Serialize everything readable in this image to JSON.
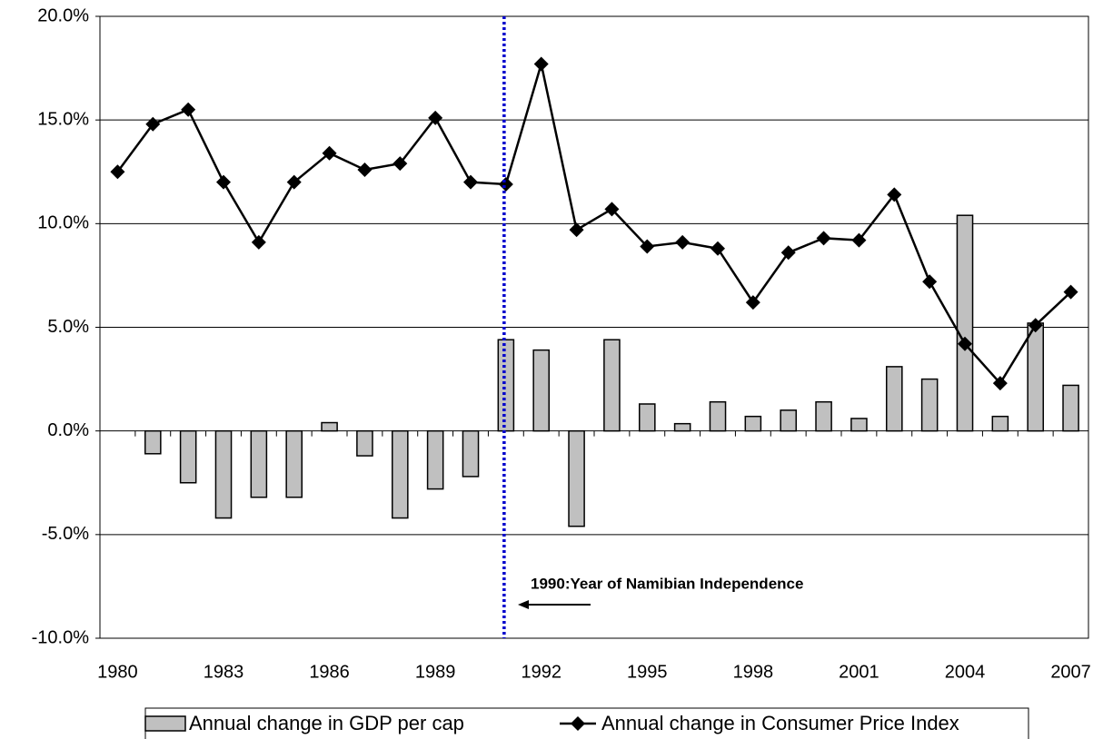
{
  "chart_data": {
    "type": "bar-line",
    "categories": [
      "1980",
      null,
      null,
      "1983",
      null,
      null,
      "1986",
      null,
      null,
      "1989",
      null,
      null,
      "1992",
      null,
      null,
      "1995",
      null,
      null,
      "1998",
      null,
      null,
      "2001",
      null,
      null,
      "2004",
      null,
      null,
      "2007"
    ],
    "series": [
      {
        "name": "Annual change in GDP per cap",
        "type": "bar",
        "color": "#c0c0c0",
        "values": [
          null,
          -1.1,
          -2.5,
          -4.2,
          -3.2,
          -3.2,
          0.4,
          -1.2,
          -4.2,
          -2.8,
          -2.2,
          4.4,
          3.9,
          -4.6,
          4.4,
          1.3,
          0.35,
          1.4,
          0.7,
          1.0,
          1.4,
          0.6,
          3.1,
          2.5,
          10.4,
          0.7,
          5.2,
          2.2
        ]
      },
      {
        "name": "Annual change in Consumer Price Index",
        "type": "line",
        "color": "#000000",
        "values": [
          12.5,
          14.8,
          15.5,
          12.0,
          9.1,
          12.0,
          13.4,
          12.6,
          12.9,
          15.1,
          12.0,
          11.9,
          17.7,
          9.7,
          10.7,
          8.9,
          9.1,
          8.8,
          6.2,
          8.6,
          9.3,
          9.2,
          11.4,
          7.2,
          4.2,
          2.3,
          5.1,
          6.7
        ]
      }
    ],
    "ylim": [
      -10,
      20
    ],
    "yticks": [
      {
        "value": -10,
        "label": "-10.0%"
      },
      {
        "value": -5,
        "label": "-5.0%"
      },
      {
        "value": 0,
        "label": "0.0%"
      },
      {
        "value": 5,
        "label": "5.0%"
      },
      {
        "value": 10,
        "label": "10.0%"
      },
      {
        "value": 15,
        "label": "15.0%"
      },
      {
        "value": 20,
        "label": "20.0%"
      }
    ],
    "grid": true,
    "legend": "bottom",
    "annotation": {
      "text": "1990:Year of Namibian Independence",
      "color": "#0000cc"
    }
  }
}
